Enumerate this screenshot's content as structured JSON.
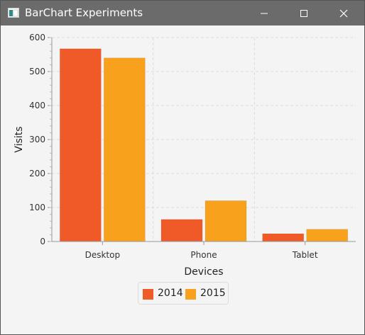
{
  "window": {
    "title": "BarChart Experiments",
    "controls": {
      "minimize": "minimize",
      "maximize": "maximize",
      "close": "close"
    }
  },
  "chart_data": {
    "type": "bar",
    "title": "",
    "xlabel": "Devices",
    "ylabel": "Visits",
    "categories": [
      "Desktop",
      "Phone",
      "Tablet"
    ],
    "series": [
      {
        "name": "2014",
        "values": [
          567,
          65,
          23
        ],
        "color": "#f05a28"
      },
      {
        "name": "2015",
        "values": [
          540,
          120,
          36
        ],
        "color": "#f8a11c"
      }
    ],
    "ylim": [
      0,
      600
    ],
    "yticks": [
      0,
      100,
      200,
      300,
      400,
      500,
      600
    ],
    "grid": true,
    "legend_position": "bottom-center"
  }
}
